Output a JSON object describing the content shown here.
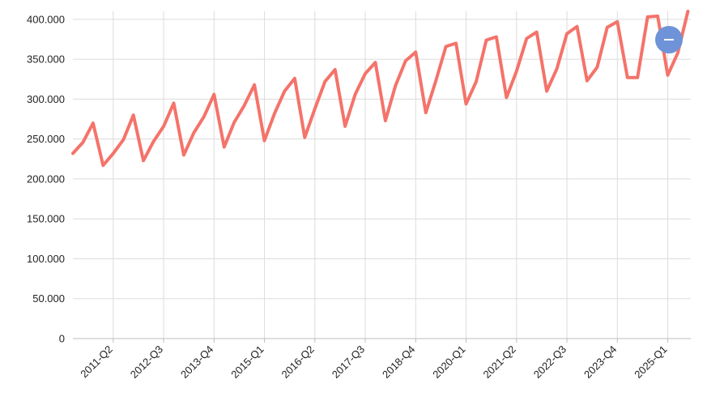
{
  "chart_data": {
    "type": "line",
    "title": "",
    "xlabel": "",
    "ylabel": "",
    "ylim": [
      0,
      410000
    ],
    "y_ticks": [
      "0",
      "50.000",
      "100.000",
      "150.000",
      "200.000",
      "250.000",
      "300.000",
      "350.000",
      "400.000"
    ],
    "y_tick_values": [
      0,
      50000,
      100000,
      150000,
      200000,
      250000,
      300000,
      350000,
      400000
    ],
    "x_tick_labels": [
      "2011-Q2",
      "2012-Q3",
      "2013-Q4",
      "2015-Q1",
      "2016-Q2",
      "2017-Q3",
      "2018-Q4",
      "2020-Q1",
      "2021-Q2",
      "2022-Q3",
      "2023-Q4",
      "2025-Q1"
    ],
    "grid": true,
    "color": "#f4736a",
    "categories": [
      "2010-Q2",
      "2010-Q3",
      "2010-Q4",
      "2011-Q1",
      "2011-Q2",
      "2011-Q3",
      "2011-Q4",
      "2012-Q1",
      "2012-Q2",
      "2012-Q3",
      "2012-Q4",
      "2013-Q1",
      "2013-Q2",
      "2013-Q3",
      "2013-Q4",
      "2014-Q1",
      "2014-Q2",
      "2014-Q3",
      "2014-Q4",
      "2015-Q1",
      "2015-Q2",
      "2015-Q3",
      "2015-Q4",
      "2016-Q1",
      "2016-Q2",
      "2016-Q3",
      "2016-Q4",
      "2017-Q1",
      "2017-Q2",
      "2017-Q3",
      "2017-Q4",
      "2018-Q1",
      "2018-Q2",
      "2018-Q3",
      "2018-Q4",
      "2019-Q1",
      "2019-Q2",
      "2019-Q3",
      "2019-Q4",
      "2020-Q1",
      "2020-Q2",
      "2020-Q3",
      "2020-Q4",
      "2021-Q1",
      "2021-Q2",
      "2021-Q3",
      "2021-Q4",
      "2022-Q1",
      "2022-Q2",
      "2022-Q3",
      "2022-Q4",
      "2023-Q1",
      "2023-Q2",
      "2023-Q3",
      "2023-Q4",
      "2024-Q1",
      "2024-Q2",
      "2024-Q3",
      "2024-Q4",
      "2025-Q1",
      "2025-Q2",
      "2025-Q3"
    ],
    "series": [
      {
        "values": [
          232000,
          246000,
          270000,
          217000,
          232000,
          249000,
          280000,
          223000,
          247000,
          266000,
          295000,
          230000,
          258000,
          278000,
          306000,
          240000,
          271000,
          292000,
          318000,
          248000,
          282000,
          310000,
          326000,
          252000,
          288000,
          322000,
          337000,
          266000,
          306000,
          332000,
          346000,
          273000,
          317000,
          348000,
          359000,
          283000,
          323000,
          366000,
          370000,
          294000,
          322000,
          374000,
          378000,
          302000,
          335000,
          376000,
          384000,
          310000,
          338000,
          382000,
          391000,
          323000,
          340000,
          390000,
          397000,
          327000,
          327000,
          403000,
          404000,
          330000,
          358000,
          410000
        ]
      }
    ]
  },
  "controls": {
    "zoom_button_icon": "minus-icon"
  }
}
